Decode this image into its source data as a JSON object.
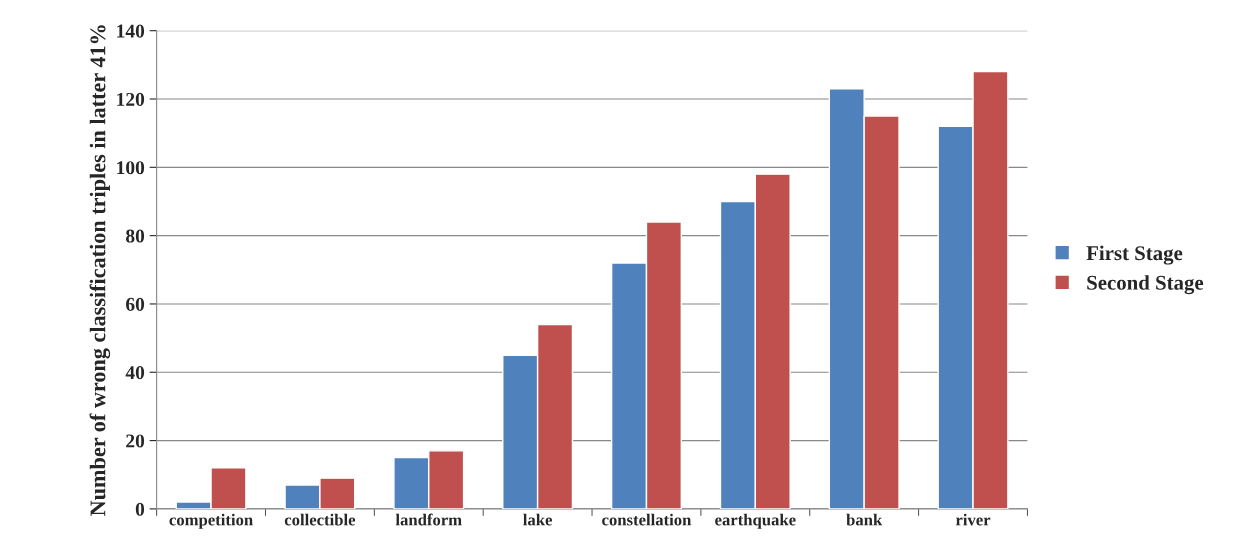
{
  "chart_data": {
    "type": "bar",
    "ylabel": "Number of wrong classification triples in latter 41%",
    "categories": [
      "competition",
      "collectible",
      "landform",
      "lake",
      "constellation",
      "earthquake",
      "bank",
      "river"
    ],
    "series": [
      {
        "name": "First Stage",
        "color": "#4f81bd",
        "values": [
          2,
          7,
          15,
          45,
          72,
          90,
          123,
          112
        ]
      },
      {
        "name": "Second Stage",
        "color": "#c0504d",
        "values": [
          12,
          9,
          17,
          54,
          84,
          98,
          115,
          128
        ]
      }
    ],
    "ylim": [
      0,
      140
    ],
    "yticks": [
      0,
      20,
      40,
      60,
      80,
      100,
      120,
      140
    ],
    "grid": "y",
    "legend": "right"
  }
}
